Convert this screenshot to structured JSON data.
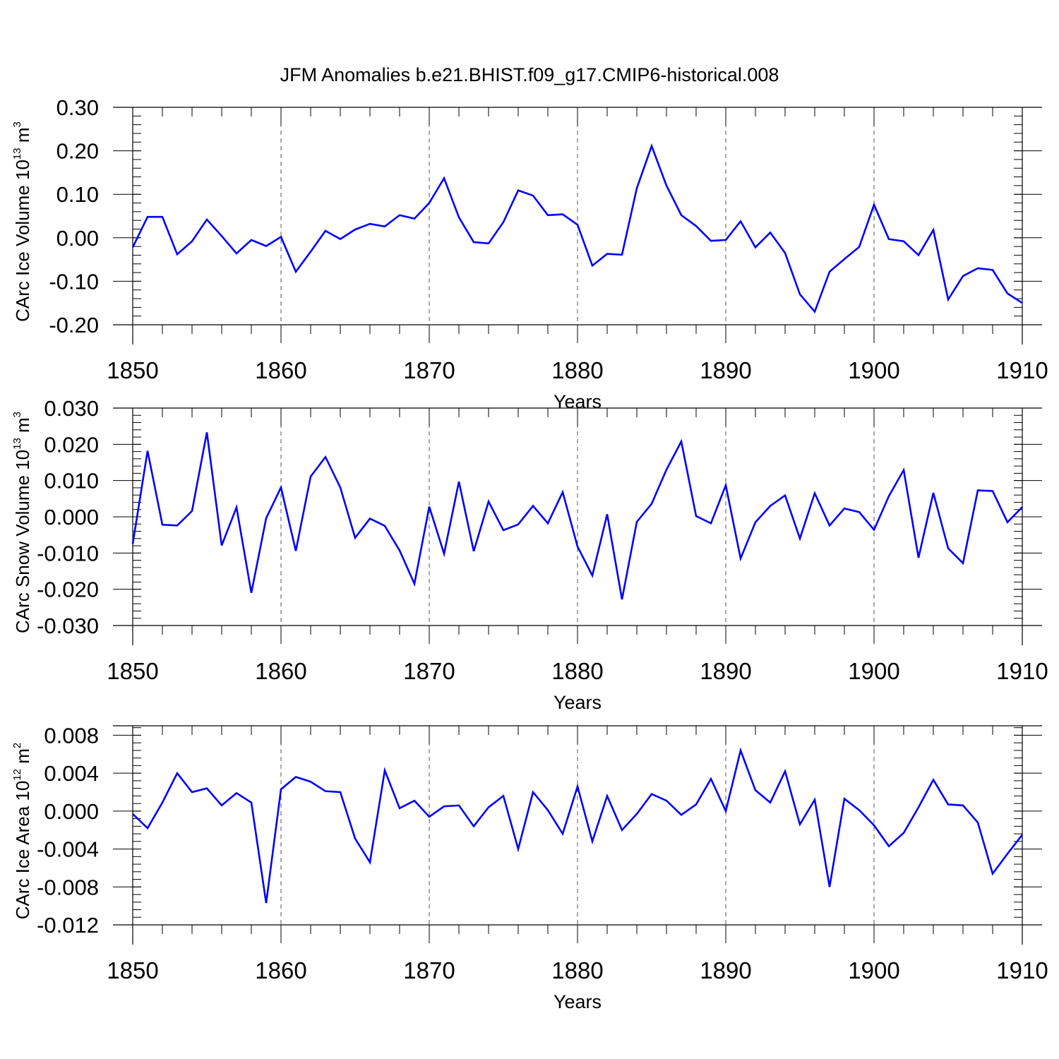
{
  "title": "JFM Anomalies b.e21.BHIST.f09_g17.CMIP6-historical.008",
  "line_color": "#0000ff",
  "chart_data": [
    {
      "type": "line",
      "ylabel": {
        "prefix": "CArc Ice Volume 10",
        "exponent": "13",
        "unit": " m",
        "unit_exponent": "3"
      },
      "xlabel": "Years",
      "xlim": [
        1850,
        1910
      ],
      "ylim": [
        -0.2,
        0.3
      ],
      "xticks": [
        "1850",
        "1860",
        "1870",
        "1880",
        "1890",
        "1900",
        "1910"
      ],
      "yticks": [
        "0.30",
        "0.20",
        "0.10",
        "0.00",
        "-0.10",
        "-0.20"
      ],
      "ytick_values": [
        0.3,
        0.2,
        0.1,
        0.0,
        -0.1,
        -0.2
      ],
      "x_start": 1850,
      "values": [
        -0.022,
        0.048,
        0.048,
        -0.038,
        -0.008,
        0.042,
        0.004,
        -0.036,
        -0.005,
        -0.019,
        0.002,
        -0.078,
        -0.032,
        0.016,
        -0.003,
        0.019,
        0.032,
        0.026,
        0.052,
        0.044,
        0.08,
        0.137,
        0.047,
        -0.01,
        -0.013,
        0.036,
        0.109,
        0.097,
        0.052,
        0.054,
        0.03,
        -0.064,
        -0.037,
        -0.039,
        0.114,
        0.211,
        0.12,
        0.052,
        0.027,
        -0.007,
        -0.005,
        0.038,
        -0.022,
        0.012,
        -0.035,
        -0.13,
        -0.17,
        -0.078,
        -0.049,
        -0.021,
        0.076,
        -0.003,
        -0.008,
        -0.04,
        0.018,
        -0.142,
        -0.088,
        -0.07,
        -0.074,
        -0.128,
        -0.15
      ]
    },
    {
      "type": "line",
      "ylabel": {
        "prefix": "CArc Snow Volume 10",
        "exponent": "13",
        "unit": " m",
        "unit_exponent": "3"
      },
      "xlabel": "Years",
      "xlim": [
        1850,
        1910
      ],
      "ylim": [
        -0.03,
        0.03
      ],
      "xticks": [
        "1850",
        "1860",
        "1870",
        "1880",
        "1890",
        "1900",
        "1910"
      ],
      "yticks": [
        "0.030",
        "0.020",
        "0.010",
        "0.000",
        "-0.010",
        "-0.020",
        "-0.030"
      ],
      "ytick_values": [
        0.03,
        0.02,
        0.01,
        0.0,
        -0.01,
        -0.02,
        -0.03
      ],
      "x_start": 1850,
      "values": [
        -0.0075,
        0.0182,
        -0.0022,
        -0.0024,
        0.0016,
        0.0233,
        -0.0079,
        0.0026,
        -0.021,
        -0.0004,
        0.0081,
        -0.0094,
        0.0111,
        0.0165,
        0.0081,
        -0.0058,
        -0.0005,
        -0.0025,
        -0.0093,
        -0.0185,
        0.0028,
        -0.0102,
        0.0097,
        -0.0095,
        0.0042,
        -0.0037,
        -0.0021,
        0.003,
        -0.0018,
        0.0068,
        -0.0082,
        -0.0162,
        0.0007,
        -0.0228,
        -0.0014,
        0.0036,
        0.013,
        0.0208,
        0.0002,
        -0.0018,
        0.0087,
        -0.0115,
        -0.0015,
        0.003,
        0.0059,
        -0.006,
        0.0065,
        -0.0024,
        0.0023,
        0.0013,
        -0.0036,
        0.0057,
        0.0129,
        -0.0113,
        0.0066,
        -0.0087,
        -0.0128,
        0.0073,
        0.0071,
        -0.0015,
        0.0027
      ]
    },
    {
      "type": "line",
      "ylabel": {
        "prefix": "CArc Ice Area 10",
        "exponent": "12",
        "unit": " m",
        "unit_exponent": "2"
      },
      "xlabel": "Years",
      "xlim": [
        1850,
        1910
      ],
      "ylim": [
        -0.012,
        0.009
      ],
      "xticks": [
        "1850",
        "1860",
        "1870",
        "1880",
        "1890",
        "1900",
        "1910"
      ],
      "yticks": [
        "0.008",
        "0.004",
        "0.000",
        "-0.004",
        "-0.008",
        "-0.012"
      ],
      "ytick_values": [
        0.008,
        0.004,
        0.0,
        -0.004,
        -0.008,
        -0.012
      ],
      "x_start": 1850,
      "values": [
        -0.0003,
        -0.0018,
        0.0009,
        0.004,
        0.002,
        0.0024,
        0.0006,
        0.0019,
        0.0009,
        -0.0097,
        0.0023,
        0.0036,
        0.0031,
        0.0021,
        0.002,
        -0.0029,
        -0.0054,
        0.0043,
        0.0003,
        0.0011,
        -0.0006,
        0.0005,
        0.0006,
        -0.0016,
        0.0004,
        0.0016,
        -0.004,
        0.002,
        0.0001,
        -0.0024,
        0.0026,
        -0.0032,
        0.0016,
        -0.002,
        -0.0003,
        0.0018,
        0.0011,
        -0.0004,
        0.0007,
        0.0034,
        0.0,
        0.0064,
        0.0022,
        0.0009,
        0.0042,
        -0.0014,
        0.0012,
        -0.008,
        0.0013,
        0.0001,
        -0.0015,
        -0.0037,
        -0.0023,
        0.0004,
        0.0033,
        0.0007,
        0.0006,
        -0.0012,
        -0.0066,
        -0.0045,
        -0.0025
      ]
    }
  ]
}
